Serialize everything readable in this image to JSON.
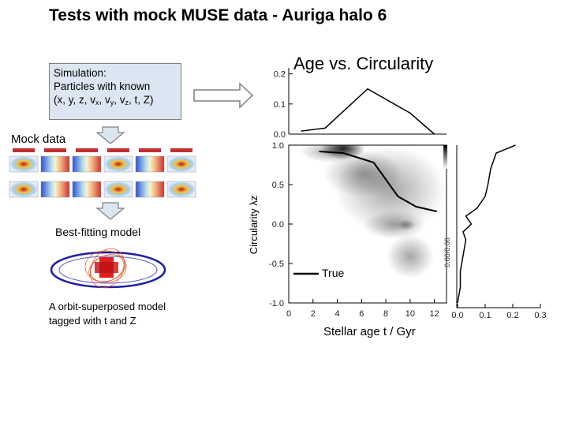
{
  "slide": {
    "title": "Tests with mock MUSE data - Auriga halo 6"
  },
  "simulation_box": {
    "line1": "Simulation:",
    "line2": "Particles with known"
  },
  "panel": {
    "title": "Age vs. Circularity"
  },
  "labels": {
    "mock_data": "Mock data",
    "best_fit": "Best-fitting model",
    "orbit_caption_line1": "A orbit-superposed model",
    "orbit_caption_line2": "tagged with t and Z",
    "true_legend": "True",
    "x_axis": "Stellar age t / Gyr"
  },
  "top_panel": {
    "y_ticks": [
      "0.2",
      "0.1",
      "0.0"
    ]
  },
  "main_panel": {
    "y_label": "Circularity λz",
    "y_ticks": [
      "1.0",
      "0.5",
      "0.0",
      "-0.5",
      "-1.0"
    ],
    "x_ticks": [
      "0",
      "2",
      "4",
      "6",
      "8",
      "10",
      "12"
    ]
  },
  "side_panel": {
    "x_ticks": [
      "0.0",
      "0.1",
      "0.2",
      "0.3"
    ],
    "y_label": "0.00/0.06"
  },
  "chart_data": {
    "type": "line",
    "xlabel": "Stellar age t / Gyr",
    "ylabel": "Circularity λz",
    "xlim": [
      0,
      13
    ],
    "ylim": [
      -1.0,
      1.0
    ],
    "series": [
      {
        "name": "True",
        "x": [
          2.5,
          4.5,
          7.0,
          9.0,
          10.5,
          12.2
        ],
        "y": [
          0.92,
          0.9,
          0.78,
          0.35,
          0.22,
          0.16
        ]
      }
    ],
    "age_distribution": {
      "x": [
        1.0,
        3.0,
        6.5,
        10.0,
        12.0
      ],
      "y": [
        0.01,
        0.02,
        0.15,
        0.07,
        0.0
      ],
      "ylim": [
        0,
        0.22
      ]
    },
    "circularity_distribution": {
      "circ": [
        1.0,
        0.9,
        0.7,
        0.5,
        0.35,
        0.2,
        0.1,
        0.0,
        -0.1,
        -0.2,
        -0.4,
        -0.6,
        -0.8,
        -1.0
      ],
      "frac": [
        0.21,
        0.14,
        0.12,
        0.11,
        0.1,
        0.07,
        0.03,
        0.05,
        0.02,
        0.03,
        0.02,
        0.01,
        0.01,
        0.0
      ],
      "xlim": [
        0,
        0.3
      ]
    }
  }
}
